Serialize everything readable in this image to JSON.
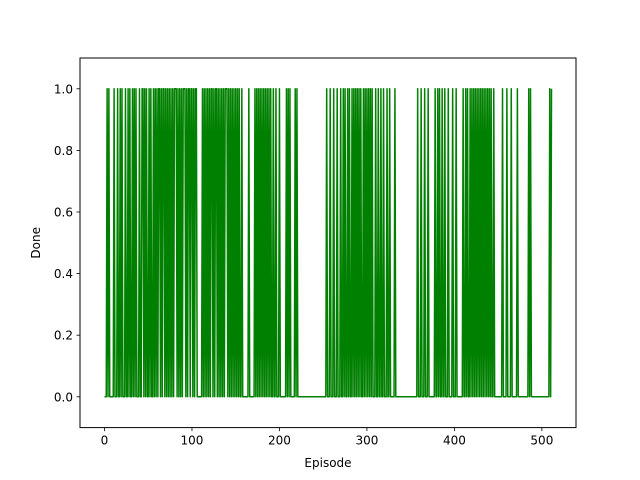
{
  "chart_data": {
    "type": "line",
    "title": "",
    "xlabel": "Episode",
    "ylabel": "Done",
    "xlim": [
      -28,
      539
    ],
    "ylim": [
      -0.1,
      1.1
    ],
    "xticks": [
      0,
      100,
      200,
      300,
      400,
      500
    ],
    "yticks": [
      0.0,
      0.2,
      0.4,
      0.6,
      0.8,
      1.0
    ],
    "xtick_labels": [
      "0",
      "100",
      "200",
      "300",
      "400",
      "500"
    ],
    "ytick_labels": [
      "0.0",
      "0.2",
      "0.4",
      "0.6",
      "0.8",
      "1.0"
    ],
    "grid": false,
    "legend": "none",
    "series": [
      {
        "color": "#008000",
        "x_range": [
          0,
          511
        ],
        "done_episodes": [
          3,
          5,
          11,
          15,
          18,
          20,
          24,
          27,
          29,
          32,
          34,
          36,
          40,
          43,
          44,
          46,
          48,
          51,
          53,
          56,
          58,
          60,
          62,
          63,
          65,
          67,
          68,
          70,
          72,
          74,
          76,
          78,
          80,
          81,
          82,
          84,
          86,
          88,
          90,
          91,
          92,
          94,
          96,
          97,
          99,
          100,
          102,
          104,
          105,
          112,
          114,
          116,
          118,
          120,
          122,
          123,
          125,
          127,
          128,
          130,
          132,
          134,
          136,
          138,
          139,
          140,
          142,
          144,
          146,
          148,
          150,
          152,
          154,
          157,
          165,
          172,
          174,
          176,
          178,
          180,
          182,
          184,
          186,
          188,
          190,
          193,
          196,
          200,
          208,
          210,
          212,
          218,
          220,
          254,
          258,
          262,
          266,
          270,
          273,
          275,
          278,
          280,
          283,
          285,
          287,
          289,
          291,
          293,
          296,
          298,
          300,
          302,
          304,
          306,
          310,
          313,
          316,
          319,
          323,
          326,
          332,
          358,
          362,
          366,
          370,
          378,
          381,
          383,
          386,
          389,
          393,
          398,
          402,
          410,
          413,
          415,
          418,
          420,
          422,
          424,
          426,
          428,
          430,
          432,
          434,
          436,
          438,
          440,
          442,
          445,
          455,
          460,
          465,
          472,
          485,
          487,
          509,
          511
        ]
      }
    ]
  }
}
